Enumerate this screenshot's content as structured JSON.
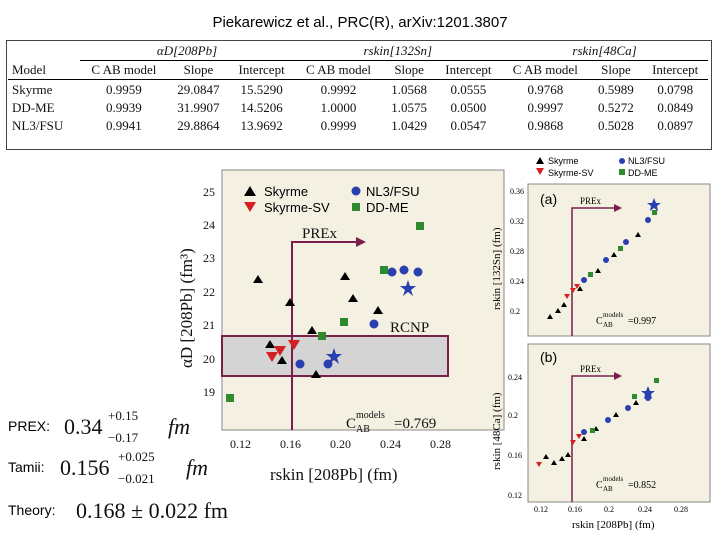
{
  "title": "Piekarewicz et al., PRC(R), arXiv:1201.3807",
  "table": {
    "groups": [
      "αD[208Pb]",
      "rskin[132Sn]",
      "rskin[48Ca]"
    ],
    "headers": [
      "Model",
      "C AB model",
      "Slope",
      "Intercept",
      "C AB model",
      "Slope",
      "Intercept",
      "C AB model",
      "Slope",
      "Intercept"
    ],
    "rows": [
      [
        "Skyrme",
        "0.9959",
        "29.0847",
        "15.5290",
        "0.9992",
        "1.0568",
        "0.0555",
        "0.9768",
        "0.5989",
        "0.0798"
      ],
      [
        "DD-ME",
        "0.9939",
        "31.9907",
        "14.5206",
        "1.0000",
        "1.0575",
        "0.0500",
        "0.9997",
        "0.5272",
        "0.0849"
      ],
      [
        "NL3/FSU",
        "0.9941",
        "29.8864",
        "13.9692",
        "0.9999",
        "1.0429",
        "0.0547",
        "0.9868",
        "0.5028",
        "0.0897"
      ]
    ]
  },
  "measurements": {
    "prex": {
      "label": "PREX:",
      "value": "0.34",
      "plus": "+0.15",
      "minus": "−0.17",
      "unit": "fm"
    },
    "tamii": {
      "label": "Tamii:",
      "value": "0.156",
      "plus": "+0.025",
      "minus": "−0.021",
      "unit": "fm"
    },
    "theory": {
      "label": "Theory:",
      "text": "0.168 ± 0.022 fm"
    }
  },
  "main_plot": {
    "ylabel": "αD [208Pb] (fm³)",
    "xlabel": "rskin [208Pb] (fm)",
    "yticks": [
      "19",
      "20",
      "21",
      "22",
      "23",
      "24",
      "25"
    ],
    "xticks": [
      "0.12",
      "0.16",
      "0.20",
      "0.24",
      "0.28"
    ],
    "legend": [
      "Skyrme",
      "Skyrme-SV",
      "NL3/FSU",
      "DD-ME"
    ],
    "prex_label": "PREx",
    "rcnp_label": "RCNP",
    "corr_label": "C",
    "corr_sub": "AB",
    "corr_sup": "models",
    "corr_value": "=0.769"
  },
  "panel_a": {
    "label": "(a)",
    "ylabel": "rskin [132Sn] (fm)",
    "yticks": [
      "0.2",
      "0.24",
      "0.28",
      "0.32",
      "0.36"
    ],
    "prex_label": "PREx",
    "corr_label": "C",
    "corr_sub": "AB",
    "corr_sup": "models",
    "corr_value": "=0.997"
  },
  "panel_b": {
    "label": "(b)",
    "ylabel": "rskin [48Ca] (fm)",
    "yticks": [
      "0.12",
      "0.16",
      "0.2",
      "0.24"
    ],
    "xticks": [
      "0.12",
      "0.16",
      "0.2",
      "0.24",
      "0.28"
    ],
    "xlabel": "rskin [208Pb] (fm)",
    "prex_label": "PREx",
    "corr_label": "C",
    "corr_sub": "AB",
    "corr_sup": "models",
    "corr_value": "=0.852"
  },
  "small_legend": [
    "Skyrme",
    "Skyrme-SV",
    "NL3/FSU",
    "DD-ME"
  ],
  "colors": {
    "skyrme": "#000000",
    "skyrme_sv": "#d42020",
    "nl3": "#2a3fb0",
    "ddme": "#2e8a2e",
    "bg_plot": "#f4f1e2",
    "prex_line": "#7a1f4a",
    "rcnp_band": "#d4d4d4"
  }
}
